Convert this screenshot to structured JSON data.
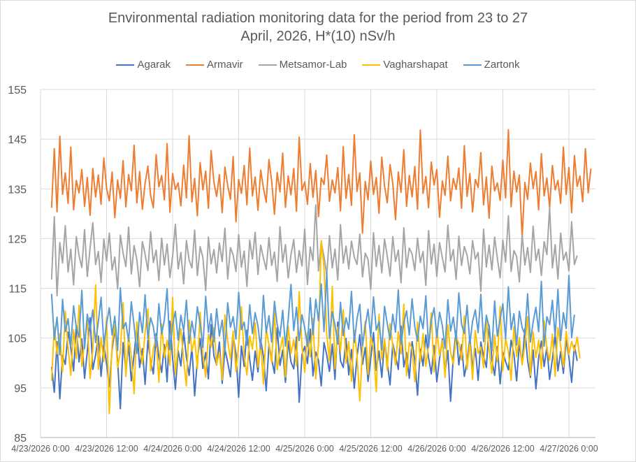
{
  "chart_data": {
    "type": "line",
    "title": "Environmental radiation monitoring data for the period from 23 to 27 April, 2026, H*(10) nSv/h",
    "title_lines": [
      "Environmental radiation monitoring data for the period from 23 to 27",
      "April, 2026, H*(10) nSv/h"
    ],
    "xlabel": "",
    "ylabel": "",
    "ylim": [
      85,
      155
    ],
    "yticks": [
      85,
      95,
      105,
      115,
      125,
      135,
      145,
      155
    ],
    "ytick_labels": [
      "85",
      "95",
      "105",
      "115",
      "125",
      "135",
      "145",
      "155"
    ],
    "xlim_days_from_start": [
      0,
      4.2
    ],
    "xticks_days": [
      0,
      0.5,
      1,
      1.5,
      2,
      2.5,
      3,
      3.5,
      4
    ],
    "xtick_labels": [
      "4/23/2026 0:00",
      "4/23/2026 12:00",
      "4/24/2026 0:00",
      "4/24/2026 12:00",
      "4/25/2026 0:00",
      "4/25/2026 12:00",
      "4/26/2026 0:00",
      "4/26/2026 12:00",
      "4/27/2026 0:00"
    ],
    "grid": true,
    "legend_position": "top",
    "x_start": "4/23/2026 2:00",
    "x_step_hours": 0.5,
    "series": [
      {
        "name": "Agarak",
        "color": "#4472C4",
        "values": [
          99.2,
          94.1,
          104.3,
          92.8,
          101.5,
          99.7,
          106.2,
          103.1,
          98.4,
          107.5,
          100.2,
          104.8,
          96.9,
          102.3,
          109.1,
          98.7,
          101.6,
          105.4,
          97.3,
          103.9,
          99.8,
          95.2,
          102.7,
          106.9,
          100.4,
          90.8,
          104.1,
          98.6,
          103.5,
          96.4,
          101.8,
          107.2,
          99.1,
          102.9,
          95.7,
          104.6,
          100.3,
          97.8,
          105.9,
          101.2,
          98.1,
          103.7,
          96.2,
          108.4,
          100.9,
          94.7,
          102.5,
          99.4,
          106.3,
          101.1,
          97.5,
          103.2,
          93.4,
          100.6,
          104.9,
          98.9,
          102.1,
          96.8,
          107.7,
          101.4,
          99.6,
          104.2,
          95.9,
          102.8,
          100.1,
          97.2,
          105.5,
          101.9,
          93.1,
          103.4,
          99.3,
          106.6,
          100.7,
          96.5,
          102.4,
          98.2,
          104.7,
          101.3,
          94.4,
          103.6,
          100.8,
          97.9,
          107.1,
          99.5,
          102.6,
          96.1,
          104.4,
          100.2,
          98.8,
          105.2,
          92.1,
          101.7,
          103.3,
          99.9,
          106.8,
          97.4,
          102.2,
          100.5,
          95.4,
          104.1,
          101.6,
          98.3,
          103.8,
          96.7,
          108.2,
          100.4,
          99.1,
          104.9,
          97.6,
          102.7,
          94.9,
          101.2,
          105.7,
          99.7,
          103.1,
          96.3,
          100.9,
          106.1,
          98.5,
          102.4,
          97.1,
          104.5,
          100.1,
          95.6,
          103.9,
          101.5,
          98.7,
          107.4,
          99.2,
          102.1,
          96.9,
          104.3,
          100.6,
          93.5,
          102.8,
          99.4,
          105.6,
          101.1,
          97.8,
          103.5,
          96.2,
          100.9,
          104.8,
          98.1,
          102.5,
          92.3,
          101.3,
          106.4,
          99.6,
          103.7,
          97.3,
          100.2,
          105.1,
          98.9,
          102.9,
          96.5,
          104.2,
          101.4,
          99.1,
          107.6,
          100.7,
          97.5,
          103.3,
          95.8,
          102.1,
          100.3,
          98.6,
          104.6,
          101.8,
          96.4,
          103.9,
          99.8,
          106.9,
          100.5,
          97.1,
          102.6,
          94.8,
          101.1,
          104.4,
          99.3,
          103.2,
          96.7,
          100.8,
          105.8,
          98.4,
          102.3,
          97.9,
          104.7,
          101.2,
          96.1,
          103.5,
          100.4
        ]
      },
      {
        "name": "Armavir",
        "color": "#ED7D31",
        "values": [
          131.2,
          143.1,
          130.4,
          145.6,
          133.9,
          138.2,
          132.1,
          143.4,
          130.8,
          136.7,
          134.2,
          138.9,
          131.5,
          137.3,
          129.7,
          139.1,
          133.4,
          137.8,
          131.9,
          141.2,
          135.1,
          132.6,
          138.4,
          129.2,
          136.8,
          133.1,
          140.7,
          131.4,
          137.9,
          134.6,
          143.8,
          132.2,
          138.5,
          130.9,
          136.1,
          139.6,
          133.7,
          131.2,
          141.9,
          135.4,
          137.7,
          132.8,
          144.1,
          130.3,
          138.1,
          134.9,
          136.2,
          131.6,
          139.8,
          133.2,
          145.7,
          132.4,
          137.1,
          129.6,
          140.3,
          134.8,
          138.6,
          131.1,
          142.7,
          136.3,
          133.5,
          137.9,
          130.2,
          139.4,
          135.7,
          132.9,
          141.5,
          128.4,
          136.9,
          134.1,
          139.7,
          131.8,
          143.2,
          133.6,
          137.4,
          130.7,
          138.8,
          135.2,
          132.3,
          140.9,
          136.6,
          129.9,
          138.3,
          134.4,
          142.2,
          131.3,
          137.6,
          133.8,
          139.1,
          130.5,
          145.4,
          134.7,
          136.4,
          131.9,
          140.1,
          133.3,
          138.7,
          129.4,
          137.2,
          135.9,
          141.8,
          132.5,
          136.8,
          134.2,
          139.3,
          130.6,
          143.5,
          133.1,
          137.9,
          131.7,
          145.9,
          134.5,
          138.2,
          126.1,
          136.5,
          132.8,
          140.6,
          133.9,
          137.3,
          130.1,
          141.4,
          135.6,
          132.2,
          139.9,
          136.1,
          128.8,
          138.4,
          134.3,
          142.9,
          131.5,
          137.7,
          133.4,
          139.5,
          130.9,
          146.8,
          134.1,
          137.5,
          131.2,
          140.4,
          135.8,
          138.9,
          129.3,
          136.6,
          133.7,
          141.6,
          132.6,
          137.1,
          134.9,
          139.2,
          131.1,
          143.7,
          133.5,
          138.1,
          130.4,
          136.9,
          135.3,
          142.3,
          131.8,
          137.4,
          129.1,
          139.6,
          134.6,
          136.2,
          132.7,
          140.8,
          133.2,
          146.9,
          131.4,
          138.6,
          134.4,
          137.8,
          125.2,
          136.3,
          132.9,
          140.2,
          135.1,
          138.5,
          130.8,
          142.1,
          133.6,
          137.2,
          131.3,
          139.7,
          134.8,
          136.7,
          132.1,
          143.4,
          133.9,
          139.3,
          130.2,
          141.7,
          135.5,
          137.6,
          132.4,
          143.1,
          134.2,
          139.1
        ]
      },
      {
        "name": "Metsamor-Lab",
        "color": "#A5A5A5",
        "values": [
          116.8,
          129.4,
          113.5,
          124.2,
          120.1,
          127.6,
          118.3,
          122.9,
          115.7,
          125.4,
          121.6,
          119.2,
          126.8,
          117.4,
          123.1,
          128.2,
          119.8,
          122.4,
          116.2,
          124.9,
          120.5,
          126.1,
          118.7,
          121.3,
          114.9,
          125.7,
          122.1,
          119.4,
          127.3,
          117.9,
          123.6,
          120.8,
          115.3,
          124.4,
          121.9,
          118.6,
          126.4,
          120.2,
          122.7,
          116.6,
          125.1,
          119.7,
          123.9,
          117.2,
          121.5,
          127.9,
          118.9,
          122.2,
          115.9,
          124.6,
          120.7,
          119.1,
          126.7,
          117.6,
          123.4,
          121.2,
          114.6,
          125.3,
          119.9,
          122.8,
          118.1,
          124.1,
          120.4,
          127.1,
          116.9,
          123.2,
          121.7,
          118.4,
          125.8,
          119.3,
          122.5,
          115.4,
          124.7,
          120.9,
          126.3,
          117.8,
          123.7,
          121.1,
          118.8,
          125.2,
          119.6,
          122.3,
          116.4,
          127.4,
          120.3,
          123.8,
          117.1,
          121.8,
          124.8,
          118.2,
          122.6,
          119.5,
          126.9,
          115.8,
          123.3,
          120.6,
          131.8,
          118.5,
          124.3,
          121.4,
          117.7,
          125.6,
          119.1,
          122.9,
          116.7,
          127.8,
          120.1,
          123.5,
          118.9,
          124.5,
          121.3,
          119.8,
          125.9,
          117.3,
          122.1,
          120.8,
          114.8,
          126.2,
          119.4,
          123.6,
          118.1,
          124.9,
          121.5,
          117.5,
          125.4,
          120.4,
          122.7,
          116.1,
          127.2,
          119.2,
          123.1,
          121.9,
          118.6,
          125.1,
          120.2,
          122.4,
          115.6,
          126.6,
          119.9,
          123.9,
          117.4,
          124.2,
          121.2,
          118.3,
          127.7,
          120.5,
          122.8,
          116.8,
          125.5,
          119.6,
          123.4,
          121.7,
          117.9,
          124.6,
          120.9,
          122.2,
          114.4,
          126.9,
          119.3,
          123.7,
          118.7,
          125.3,
          121.1,
          117.1,
          124.7,
          120.3,
          129.6,
          118.4,
          122.6,
          121.4,
          116.3,
          125.8,
          119.7,
          123.2,
          118.2,
          127.5,
          120.6,
          122.9,
          117.6,
          124.4,
          121.8,
          131.2,
          119.1,
          123.8,
          116.9,
          126.1,
          120.7,
          122.3,
          118.5,
          128.4,
          119.8,
          121.6
        ]
      },
      {
        "name": "Vagharshapat",
        "color": "#FFC000",
        "values": [
          96.4,
          107.3,
          101.8,
          105.9,
          98.2,
          110.4,
          103.1,
          97.5,
          106.7,
          100.9,
          111.6,
          99.3,
          104.2,
          108.8,
          96.9,
          102.6,
          115.7,
          98.7,
          105.1,
          100.3,
          109.2,
          89.8,
          103.9,
          107.6,
          99.1,
          102.2,
          112.1,
          97.3,
          105.6,
          101.4,
          93.8,
          108.3,
          103.5,
          99.8,
          106.2,
          110.9,
          98.4,
          102.9,
          105.3,
          96.1,
          107.8,
          101.1,
          104.6,
          99.5,
          113.2,
          97.8,
          103.4,
          106.9,
          100.6,
          95.4,
          108.6,
          102.3,
          104.9,
          98.9,
          110.2,
          101.7,
          97.1,
          105.8,
          103.2,
          107.1,
          99.7,
          102.1,
          96.6,
          109.7,
          104.4,
          100.8,
          106.4,
          98.3,
          103.7,
          111.3,
          101.3,
          97.6,
          105.4,
          102.8,
          108.1,
          99.2,
          104.1,
          95.8,
          106.8,
          103.6,
          100.1,
          110.6,
          98.6,
          102.5,
          105.2,
          97.2,
          107.4,
          101.9,
          104.7,
          99.4,
          114.3,
          103.3,
          98.1,
          106.1,
          101.2,
          108.9,
          96.8,
          103.8,
          124.6,
          119.2,
          105.7,
          100.4,
          115.4,
          98.8,
          107.2,
          102.4,
          110.7,
          99.9,
          104.3,
          96.3,
          106.6,
          101.6,
          92.4,
          103.1,
          108.4,
          97.7,
          105.5,
          102.7,
          94.2,
          109.8,
          100.7,
          104.8,
          98.5,
          107.9,
          103.4,
          99.6,
          106.3,
          101.8,
          111.8,
          97.4,
          104.1,
          102.9,
          96.2,
          108.2,
          100.2,
          105.9,
          99.3,
          103.6,
          110.1,
          98.2,
          106.9,
          101.5,
          104.5,
          97.1,
          107.7,
          102.1,
          99.8,
          105.3,
          103.9,
          100.6,
          109.5,
          98.7,
          104.2,
          96.7,
          106.5,
          101.9,
          103.2,
          99.1,
          108.7,
          102.6,
          97.9,
          105.6,
          100.3,
          111.4,
          98.4,
          104.9,
          102.2,
          96.5,
          107.3,
          101.3,
          105.1,
          99.6,
          103.7,
          109.3,
          97.5,
          106.2,
          101.1,
          104.6,
          98.9,
          108.5,
          102.8,
          100.5,
          105.8,
          97.3,
          107.1,
          103.5,
          99.2,
          106.4,
          101.7,
          104.3,
          102.4,
          105.2,
          100.9
        ]
      },
      {
        "name": "Zartonk",
        "color": "#5B9BD5",
        "values": [
          113.9,
          104.7,
          109.2,
          101.6,
          112.8,
          106.3,
          108.9,
          103.4,
          111.5,
          107.1,
          105.2,
          114.6,
          102.9,
          109.8,
          106.6,
          110.7,
          104.1,
          108.3,
          113.2,
          103.7,
          107.9,
          111.1,
          105.6,
          109.4,
          102.5,
          115.1,
          106.9,
          108.1,
          104.4,
          112.3,
          107.5,
          101.9,
          110.2,
          106.1,
          113.7,
          104.9,
          109.1,
          107.3,
          103.2,
          111.9,
          105.8,
          108.7,
          114.9,
          102.7,
          107.6,
          110.4,
          104.6,
          109.6,
          106.4,
          112.6,
          103.9,
          108.4,
          105.1,
          111.3,
          107.8,
          103.1,
          113.4,
          106.2,
          109.9,
          104.3,
          110.9,
          105.4,
          108.6,
          102.2,
          112.1,
          107.2,
          109.3,
          104.8,
          114.2,
          106.7,
          108.2,
          103.6,
          111.7,
          105.9,
          110.1,
          107.4,
          102.8,
          113.6,
          106.1,
          109.5,
          104.2,
          112.4,
          107.7,
          105.3,
          110.6,
          103.4,
          108.8,
          115.8,
          106.5,
          111.2,
          104.5,
          109.7,
          107.1,
          103.3,
          113.1,
          105.7,
          112.8,
          108.5,
          115.9,
          106.3,
          118.2,
          104.9,
          110.3,
          107.6,
          103.8,
          112.2,
          105.5,
          109.1,
          106.8,
          114.4,
          104.1,
          108.9,
          111.8,
          103.5,
          107.4,
          110.8,
          105.2,
          113.3,
          106.6,
          108.3,
          102.6,
          111.4,
          107.9,
          104.7,
          109.8,
          106.2,
          114.7,
          103.7,
          108.1,
          110.5,
          105.6,
          112.9,
          107.3,
          104.4,
          109.4,
          106.9,
          113.5,
          103.1,
          108.6,
          111.1,
          105.1,
          110.2,
          107.5,
          102.9,
          112.7,
          106.4,
          109.2,
          104.6,
          114.1,
          107.8,
          105.9,
          111.6,
          103.9,
          108.4,
          110.7,
          106.1,
          113.8,
          104.3,
          109.6,
          107.2,
          102.4,
          112.5,
          105.4,
          108.8,
          111.9,
          104.8,
          115.3,
          106.7,
          109.9,
          103.6,
          110.4,
          107.1,
          105.7,
          113.9,
          104.2,
          108.2,
          111.2,
          106.3,
          116.4,
          103.4,
          109.3,
          107.7,
          112.6,
          105.3,
          114.8,
          104.5,
          110.1,
          106.9,
          117.6,
          105.1,
          109.7
        ]
      }
    ]
  }
}
